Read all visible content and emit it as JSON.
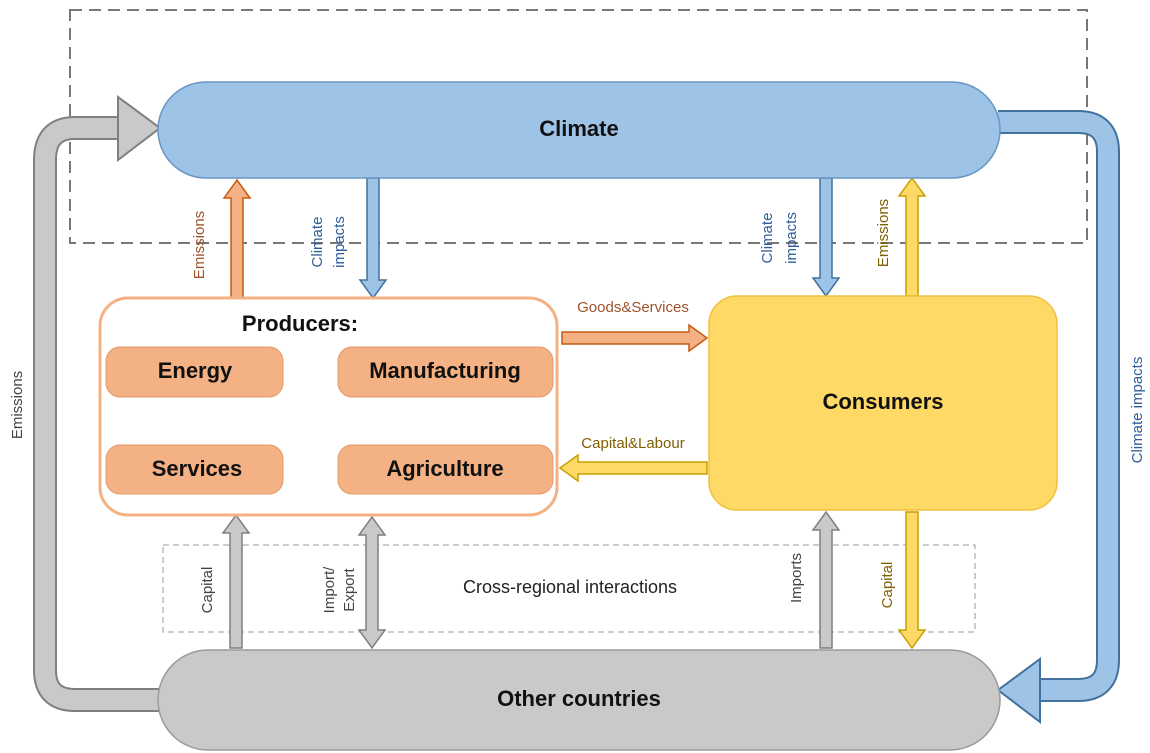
{
  "nodes": {
    "climate": "Climate",
    "other_countries": "Other countries",
    "producers": "Producers:",
    "consumers": "Consumers",
    "sectors": [
      "Energy",
      "Manufacturing",
      "Services",
      "Agriculture"
    ]
  },
  "regions": {
    "cross_regional": "Cross-regional interactions"
  },
  "flows": {
    "producer_emissions": "Emissions",
    "producer_climate_impacts": [
      "Climate",
      "impacts"
    ],
    "consumer_climate_impacts": [
      "Climate",
      "impacts"
    ],
    "consumer_emissions": "Emissions",
    "goods_services": "Goods&Services",
    "capital_labour": "Capital&Labour",
    "producer_capital": "Capital",
    "import_export": [
      "Import/",
      "Export"
    ],
    "imports": "Imports",
    "consumer_capital": "Capital",
    "global_emissions": "Emissions",
    "global_climate_impacts": "Climate impacts"
  }
}
